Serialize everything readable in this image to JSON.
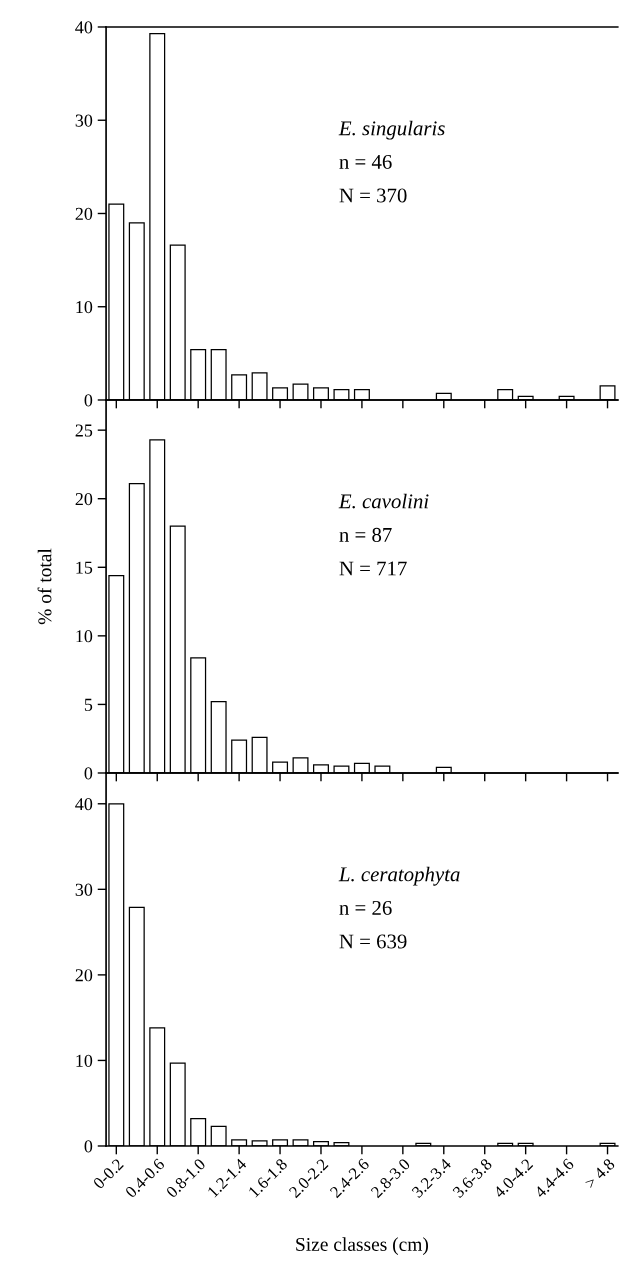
{
  "chart_data": [
    {
      "type": "bar",
      "title": "E. singularis",
      "annotations": [
        "n = 46",
        "N = 370"
      ],
      "values": [
        21.0,
        19.0,
        39.3,
        16.6,
        5.4,
        5.4,
        2.7,
        2.9,
        1.3,
        1.7,
        1.3,
        1.1,
        1.1,
        0,
        0,
        0,
        0.7,
        0,
        0,
        1.1,
        0.4,
        0,
        0.4,
        0,
        1.5
      ],
      "color": "#ffffff",
      "ylim": [
        0,
        40
      ],
      "yticks": [
        0,
        10,
        20,
        30,
        40
      ],
      "grid": false,
      "tick_labels": "y"
    },
    {
      "type": "bar",
      "title": "E. cavolini",
      "annotations": [
        "n = 87",
        "N = 717"
      ],
      "ylabel": "% of total",
      "values": [
        14.4,
        21.1,
        24.3,
        18.0,
        8.4,
        5.2,
        2.4,
        2.6,
        0.8,
        1.1,
        0.6,
        0.5,
        0.7,
        0.5,
        0,
        0,
        0.4,
        0,
        0,
        0,
        0,
        0,
        0,
        0,
        0
      ],
      "color": "#ffffff",
      "ylim": [
        0,
        27.2
      ],
      "yticks": [
        0,
        5,
        10,
        15,
        20,
        25
      ],
      "grid": false,
      "tick_labels": "y"
    },
    {
      "type": "bar",
      "title": "L. ceratophyta",
      "annotations": [
        "n = 26",
        "N = 639"
      ],
      "xlabel": "Size classes (cm)",
      "categories": [
        "0-0.2",
        null,
        "0.4-0.6",
        null,
        "0.8-1.0",
        null,
        "1.2-1.4",
        null,
        "1.6-1.8",
        null,
        "2.0-2.2",
        null,
        "2.4-2.6",
        null,
        "2.8-3.0",
        null,
        "3.2-3.4",
        null,
        "3.6-3.8",
        null,
        "4.0-4.2",
        null,
        "4.4-4.6",
        null,
        "> 4.8"
      ],
      "values": [
        40.0,
        27.9,
        13.8,
        9.7,
        3.2,
        2.3,
        0.7,
        0.6,
        0.7,
        0.7,
        0.5,
        0.4,
        0,
        0,
        0,
        0.3,
        0,
        0,
        0,
        0.3,
        0.3,
        0,
        0,
        0,
        0.3
      ],
      "color": "#ffffff",
      "ylim": [
        0,
        43.6
      ],
      "yticks": [
        0,
        10,
        20,
        30,
        40
      ],
      "grid": false
    }
  ]
}
